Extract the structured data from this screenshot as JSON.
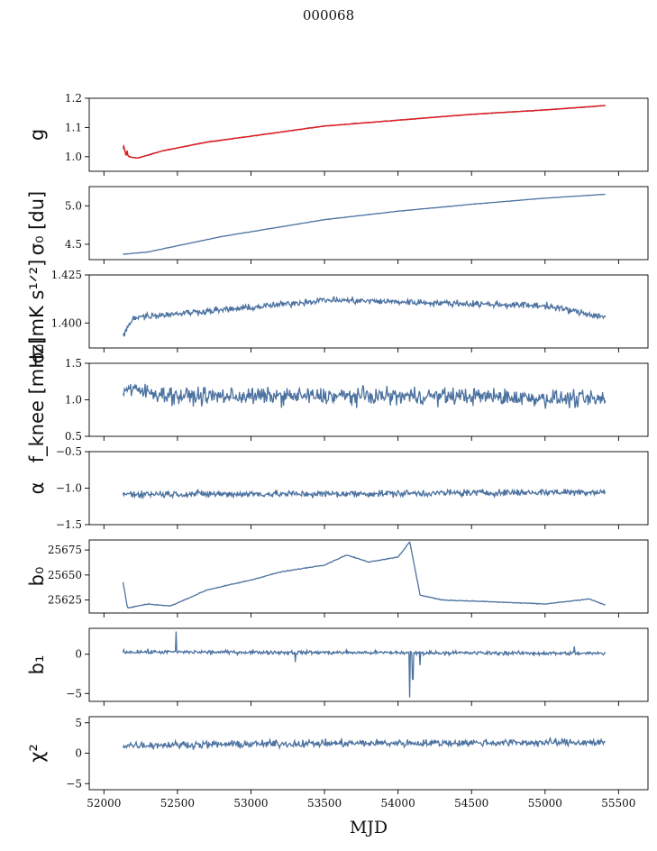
{
  "figure": {
    "title": "000068",
    "xlabel": "MJD"
  },
  "chart_data": {
    "type": "line",
    "x_range": [
      51900,
      55700
    ],
    "x_ticks": [
      52000,
      52500,
      53000,
      53500,
      54000,
      54500,
      55000,
      55500
    ],
    "x_tick_labels": [
      "52000",
      "52500",
      "53000",
      "53500",
      "54000",
      "54500",
      "55000",
      "55500"
    ],
    "data_x_start": 52130,
    "data_x_end": 55410,
    "line_color": "#4c72a0",
    "highlight_color": "#e8191a",
    "panels": [
      {
        "id": "g",
        "ylabel": "g",
        "ylim": [
          0.95,
          1.2
        ],
        "yticks": [
          1.0,
          1.1,
          1.2
        ],
        "ytick_labels": [
          "1.0",
          "1.1",
          "1.2"
        ],
        "knots": [
          [
            52130,
            1.03
          ],
          [
            52170,
            1.0
          ],
          [
            52230,
            0.995
          ],
          [
            52400,
            1.02
          ],
          [
            52700,
            1.05
          ],
          [
            53000,
            1.07
          ],
          [
            53500,
            1.105
          ],
          [
            54000,
            1.125
          ],
          [
            54500,
            1.145
          ],
          [
            55000,
            1.16
          ],
          [
            55410,
            1.175
          ]
        ],
        "noise": 0.002,
        "overlay_color": "#e8191a"
      },
      {
        "id": "sigma0_du",
        "ylabel": "σ₀ [du]",
        "ylim": [
          4.3,
          5.25
        ],
        "yticks": [
          4.5,
          5.0
        ],
        "ytick_labels": [
          "4.5",
          "5.0"
        ],
        "knots": [
          [
            52130,
            4.37
          ],
          [
            52300,
            4.4
          ],
          [
            52800,
            4.6
          ],
          [
            53500,
            4.82
          ],
          [
            54000,
            4.93
          ],
          [
            54500,
            5.02
          ],
          [
            55000,
            5.1
          ],
          [
            55410,
            5.15
          ]
        ],
        "noise": 0.004
      },
      {
        "id": "sigma0_mK",
        "ylabel": "σ₀[mK s¹ᐟ²]",
        "ylim": [
          1.387,
          1.425
        ],
        "yticks": [
          1.4,
          1.425
        ],
        "ytick_labels": [
          "1.400",
          "1.425"
        ],
        "knots": [
          [
            52130,
            1.393
          ],
          [
            52200,
            1.403
          ],
          [
            52500,
            1.405
          ],
          [
            53000,
            1.408
          ],
          [
            53500,
            1.412
          ],
          [
            54000,
            1.411
          ],
          [
            54500,
            1.41
          ],
          [
            55000,
            1.409
          ],
          [
            55410,
            1.403
          ]
        ],
        "noise": 0.0025
      },
      {
        "id": "f_knee",
        "ylabel": "f_knee [mHz]",
        "ylim": [
          0.5,
          1.5
        ],
        "yticks": [
          0.5,
          1.0,
          1.5
        ],
        "ytick_labels": [
          "0.5",
          "1.0",
          "1.5"
        ],
        "knots": [
          [
            52130,
            1.15
          ],
          [
            52500,
            1.05
          ],
          [
            53500,
            1.05
          ],
          [
            54500,
            1.05
          ],
          [
            55410,
            1.0
          ]
        ],
        "noise": 0.17
      },
      {
        "id": "alpha",
        "ylabel": "α",
        "ylim": [
          -1.5,
          -0.5
        ],
        "yticks": [
          -1.5,
          -1.0,
          -0.5
        ],
        "ytick_labels": [
          "−1.5",
          "−1.0",
          "−0.5"
        ],
        "knots": [
          [
            52130,
            -1.08
          ],
          [
            53500,
            -1.08
          ],
          [
            55410,
            -1.05
          ]
        ],
        "noise": 0.07
      },
      {
        "id": "b0",
        "ylabel": "b₀",
        "ylim": [
          25612,
          25685
        ],
        "yticks": [
          25625,
          25650,
          25675
        ],
        "ytick_labels": [
          "25625",
          "25650",
          "25675"
        ],
        "knots": [
          [
            52130,
            25643
          ],
          [
            52160,
            25617
          ],
          [
            52300,
            25621
          ],
          [
            52450,
            25619
          ],
          [
            52500,
            25622
          ],
          [
            52700,
            25635
          ],
          [
            53000,
            25645
          ],
          [
            53200,
            25653
          ],
          [
            53500,
            25660
          ],
          [
            53650,
            25670
          ],
          [
            53800,
            25663
          ],
          [
            54000,
            25668
          ],
          [
            54080,
            25683
          ],
          [
            54150,
            25630
          ],
          [
            54300,
            25625
          ],
          [
            54500,
            25624
          ],
          [
            55000,
            25621
          ],
          [
            55300,
            25626
          ],
          [
            55410,
            25620
          ]
        ],
        "noise": 0.6
      },
      {
        "id": "b1",
        "ylabel": "b₁",
        "ylim": [
          -6,
          3.3
        ],
        "yticks": [
          -5,
          0
        ],
        "ytick_labels": [
          "−5",
          "0"
        ],
        "knots": [
          [
            52130,
            0.3
          ],
          [
            54000,
            0.2
          ],
          [
            55410,
            0.1
          ]
        ],
        "noise": 0.35,
        "events": [
          [
            52490,
            2.9
          ],
          [
            53300,
            -1.0
          ],
          [
            54080,
            -5.5
          ],
          [
            54100,
            -3.2
          ],
          [
            54150,
            -1.4
          ],
          [
            55200,
            1.0
          ]
        ]
      },
      {
        "id": "chi2",
        "ylabel": "χ²",
        "ylim": [
          -6,
          6
        ],
        "yticks": [
          -5,
          0,
          5
        ],
        "ytick_labels": [
          "−5",
          "0",
          "5"
        ],
        "knots": [
          [
            52130,
            1.3
          ],
          [
            53500,
            1.6
          ],
          [
            55410,
            1.8
          ]
        ],
        "noise": 0.9
      }
    ]
  }
}
